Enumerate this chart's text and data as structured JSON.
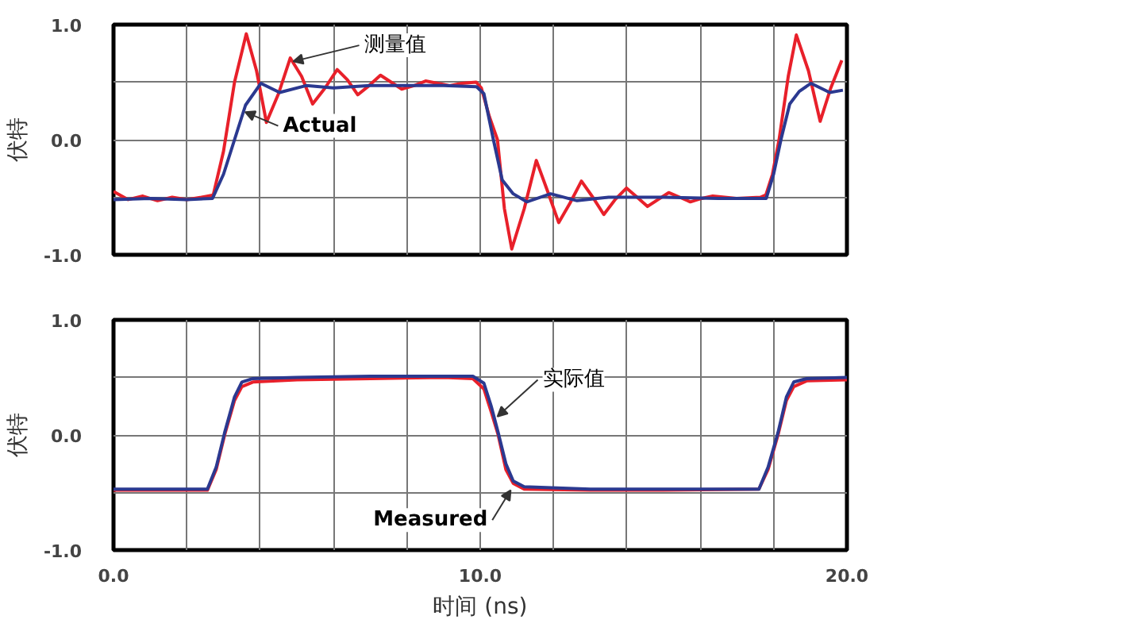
{
  "chart_data": [
    {
      "type": "line",
      "ylabel": "伏特",
      "xlim": [
        0,
        20
      ],
      "ylim": [
        -1,
        1
      ],
      "xticks": [
        {
          "value": 0,
          "label": null
        },
        {
          "value": 2,
          "label": null
        },
        {
          "value": 4,
          "label": null
        },
        {
          "value": 6,
          "label": null
        },
        {
          "value": 8,
          "label": null
        },
        {
          "value": 10,
          "label": null
        },
        {
          "value": 12,
          "label": null
        },
        {
          "value": 14,
          "label": null
        },
        {
          "value": 16,
          "label": null
        },
        {
          "value": 18,
          "label": null
        },
        {
          "value": 20,
          "label": null
        }
      ],
      "yticks": [
        {
          "value": -1,
          "label": "-1.0"
        },
        {
          "value": -0.5,
          "label": null
        },
        {
          "value": 0,
          "label": "0.0"
        },
        {
          "value": 0.5,
          "label": null
        },
        {
          "value": 1,
          "label": "1.0"
        }
      ],
      "tick_labels": "y",
      "grid": true,
      "series": [
        {
          "color": "#e8202a",
          "x": [
            0,
            0.4,
            0.8,
            1.2,
            1.6,
            2.0,
            2.4,
            2.72,
            3.0,
            3.3,
            3.62,
            3.9,
            4.17,
            4.5,
            4.82,
            5.13,
            5.43,
            5.77,
            6.1,
            6.38,
            6.66,
            6.97,
            7.28,
            7.57,
            7.86,
            8.2,
            8.51,
            8.84,
            9.17,
            9.5,
            9.89,
            10.03,
            10.25,
            10.47,
            10.66,
            10.86,
            11.2,
            11.53,
            11.84,
            12.14,
            12.45,
            12.76,
            13.07,
            13.37,
            13.68,
            13.99,
            14.28,
            14.56,
            14.85,
            15.14,
            15.44,
            15.73,
            16.04,
            16.34,
            16.99,
            17.64,
            17.79,
            17.97,
            18.15,
            18.4,
            18.62,
            18.95,
            19.27,
            19.56,
            19.86
          ],
          "values": [
            -0.45,
            -0.52,
            -0.49,
            -0.53,
            -0.5,
            -0.52,
            -0.5,
            -0.48,
            -0.1,
            0.5,
            0.92,
            0.6,
            0.15,
            0.4,
            0.71,
            0.55,
            0.31,
            0.45,
            0.61,
            0.52,
            0.39,
            0.47,
            0.56,
            0.5,
            0.44,
            0.47,
            0.51,
            0.49,
            0.47,
            0.49,
            0.5,
            0.45,
            0.2,
            0,
            -0.6,
            -0.95,
            -0.6,
            -0.18,
            -0.45,
            -0.72,
            -0.55,
            -0.36,
            -0.5,
            -0.65,
            -0.52,
            -0.42,
            -0.5,
            -0.58,
            -0.52,
            -0.46,
            -0.5,
            -0.54,
            -0.51,
            -0.49,
            -0.51,
            -0.5,
            -0.48,
            -0.3,
            0,
            0.55,
            0.91,
            0.6,
            0.16,
            0.45,
            0.69
          ]
        },
        {
          "color": "#2b3990",
          "x": [
            0,
            1,
            2,
            2.7,
            3.0,
            3.3,
            3.6,
            4.02,
            4.53,
            5.25,
            6,
            7,
            8,
            9,
            9.9,
            10.1,
            10.36,
            10.6,
            10.9,
            11.27,
            11.92,
            12.64,
            13.5,
            15,
            16.5,
            17.8,
            18.0,
            18.2,
            18.44,
            18.7,
            19.02,
            19.53,
            19.89
          ],
          "values": [
            -0.52,
            -0.51,
            -0.52,
            -0.51,
            -0.3,
            0,
            0.3,
            0.49,
            0.41,
            0.47,
            0.45,
            0.47,
            0.47,
            0.47,
            0.46,
            0.4,
            0,
            -0.35,
            -0.47,
            -0.54,
            -0.47,
            -0.53,
            -0.5,
            -0.5,
            -0.51,
            -0.51,
            -0.3,
            0,
            0.31,
            0.42,
            0.49,
            0.41,
            0.43
          ]
        }
      ],
      "annotations": [
        {
          "text": "测量值",
          "x": 4.9,
          "y": 0.68
        },
        {
          "text": "Actual",
          "x": 3.59,
          "y": 0.24
        }
      ]
    },
    {
      "type": "line",
      "ylabel": "伏特",
      "xlabel": "时间 (ns)",
      "xlim": [
        0,
        20
      ],
      "ylim": [
        -1,
        1
      ],
      "xticks": [
        {
          "value": 0,
          "label": "0.0"
        },
        {
          "value": 2,
          "label": null
        },
        {
          "value": 4,
          "label": null
        },
        {
          "value": 6,
          "label": null
        },
        {
          "value": 8,
          "label": null
        },
        {
          "value": 10,
          "label": "10.0"
        },
        {
          "value": 12,
          "label": null
        },
        {
          "value": 14,
          "label": null
        },
        {
          "value": 16,
          "label": null
        },
        {
          "value": 18,
          "label": null
        },
        {
          "value": 20,
          "label": "20.0"
        }
      ],
      "yticks": [
        {
          "value": -1,
          "label": "-1.0"
        },
        {
          "value": -0.5,
          "label": null
        },
        {
          "value": 0,
          "label": "0.0"
        },
        {
          "value": 0.5,
          "label": null
        },
        {
          "value": 1,
          "label": "1.0"
        }
      ],
      "grid": true,
      "series": [
        {
          "color": "#e8202a",
          "x": [
            0,
            2.56,
            2.8,
            3.03,
            3.3,
            3.5,
            3.8,
            5,
            7,
            9,
            9.8,
            10.1,
            10.3,
            10.49,
            10.7,
            10.9,
            11.2,
            13,
            15,
            17.6,
            17.85,
            18.12,
            18.35,
            18.55,
            18.9,
            20
          ],
          "values": [
            -0.48,
            -0.48,
            -0.3,
            0,
            0.3,
            0.42,
            0.46,
            0.48,
            0.49,
            0.5,
            0.49,
            0.4,
            0.2,
            0,
            -0.3,
            -0.42,
            -0.47,
            -0.48,
            -0.48,
            -0.47,
            -0.3,
            0,
            0.3,
            0.42,
            0.47,
            0.48
          ]
        },
        {
          "color": "#2b3990",
          "x": [
            0,
            2.56,
            2.8,
            3.03,
            3.3,
            3.5,
            3.8,
            5,
            7,
            9,
            9.8,
            10.1,
            10.3,
            10.49,
            10.7,
            10.9,
            11.2,
            13,
            15,
            17.6,
            17.85,
            18.12,
            18.35,
            18.55,
            18.9,
            20
          ],
          "values": [
            -0.47,
            -0.47,
            -0.28,
            0.02,
            0.33,
            0.46,
            0.49,
            0.5,
            0.51,
            0.51,
            0.51,
            0.45,
            0.25,
            0.02,
            -0.25,
            -0.4,
            -0.45,
            -0.47,
            -0.47,
            -0.47,
            -0.28,
            0.02,
            0.33,
            0.46,
            0.49,
            0.5
          ]
        }
      ],
      "annotations": [
        {
          "text": "实际值",
          "x": 10.47,
          "y": 0.16
        },
        {
          "text": "Measured",
          "x": 10.83,
          "y": -0.48
        }
      ]
    }
  ]
}
